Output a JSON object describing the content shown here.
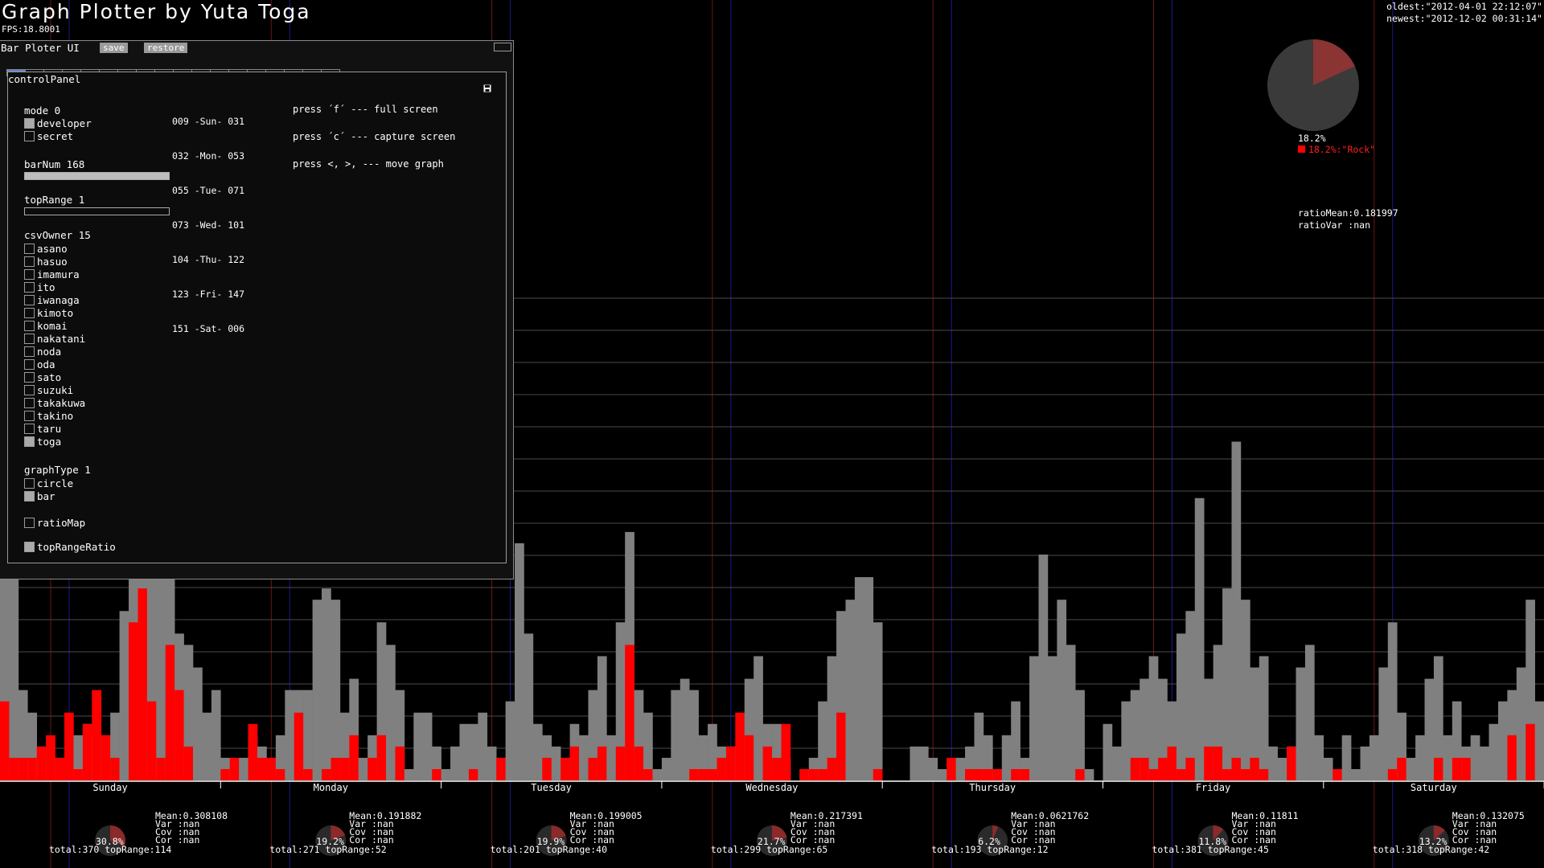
{
  "app": {
    "title": "Graph Plotter by Yuta Toga",
    "fps": "FPS:18.8001",
    "oldest": "oldest:\"2012-04-01 22:12:07\"",
    "newest": "newest:\"2012-12-02 00:31:14\""
  },
  "window": {
    "title": "Bar Ploter UI",
    "save_label": "save",
    "restore_label": "restore",
    "tab_count": 18,
    "active_tab": 0
  },
  "panel": {
    "title": "controlPanel",
    "mode": {
      "label": "mode 0",
      "options": [
        {
          "label": "developer",
          "checked": true
        },
        {
          "label": "secret",
          "checked": false
        }
      ]
    },
    "barNum": {
      "label": "barNum 168",
      "fill": 1.0
    },
    "topRange": {
      "label": "topRange 1",
      "fill": 0.0
    },
    "csvOwner": {
      "label": "csvOwner 15",
      "owners": [
        {
          "label": "asano",
          "checked": false
        },
        {
          "label": "hasuo",
          "checked": false
        },
        {
          "label": "imamura",
          "checked": false
        },
        {
          "label": "ito",
          "checked": false
        },
        {
          "label": "iwanaga",
          "checked": false
        },
        {
          "label": "kimoto",
          "checked": false
        },
        {
          "label": "komai",
          "checked": false
        },
        {
          "label": "nakatani",
          "checked": false
        },
        {
          "label": "noda",
          "checked": false
        },
        {
          "label": "oda",
          "checked": false
        },
        {
          "label": "sato",
          "checked": false
        },
        {
          "label": "suzuki",
          "checked": false
        },
        {
          "label": "takakuwa",
          "checked": false
        },
        {
          "label": "takino",
          "checked": false
        },
        {
          "label": "taru",
          "checked": false
        },
        {
          "label": "toga",
          "checked": true
        }
      ]
    },
    "graphType": {
      "label": "graphType 1",
      "options": [
        {
          "label": "circle",
          "checked": false
        },
        {
          "label": "bar",
          "checked": true
        }
      ]
    },
    "ratioMap": {
      "label": "ratioMap",
      "checked": false
    },
    "topRangeRatio": {
      "label": "topRangeRatio",
      "checked": true
    },
    "day_bins": [
      "009 -Sun- 031",
      "032 -Mon- 053",
      "055 -Tue- 071",
      "073 -Wed- 101",
      "104 -Thu- 122",
      "123 -Fri- 147",
      "151 -Sat- 006"
    ],
    "help": [
      "press ´f´ --- full screen",
      "press ´c´ --- capture screen",
      "press <, >, --- move graph"
    ]
  },
  "pie": {
    "percent_label": "18.2%",
    "legend_label": "18.2%:\"Rock\"",
    "fraction": 0.182,
    "ratio_mean": "ratioMean:0.181997",
    "ratio_var": "ratioVar :nan"
  },
  "colors": {
    "accent": "#ff0000",
    "bar_total": "#808080",
    "tab_active": "#5a85d0",
    "blue_line": "#1a1a8c",
    "red_line": "#6e1414"
  },
  "chart_data": {
    "type": "bar",
    "categories": [
      "Sunday",
      "Monday",
      "Tuesday",
      "Wednesday",
      "Thursday",
      "Friday",
      "Saturday"
    ],
    "bars_per_day": 24,
    "series": [
      {
        "color": "#808080",
        "values": [
          [
            22,
            19,
            8,
            6,
            3,
            2,
            2,
            1,
            4,
            5,
            4,
            4,
            6,
            15,
            25,
            33,
            31,
            18,
            28,
            13,
            12,
            10,
            6,
            8
          ],
          [
            2,
            1,
            2,
            4,
            3,
            2,
            4,
            8,
            8,
            8,
            16,
            17,
            16,
            6,
            9,
            2,
            4,
            14,
            12,
            8,
            1,
            6,
            6,
            3
          ],
          [
            1,
            3,
            5,
            5,
            6,
            3,
            2,
            7,
            21,
            13,
            5,
            4,
            3,
            2,
            5,
            4,
            8,
            11,
            4,
            14,
            22,
            8,
            6,
            1
          ],
          [
            2,
            8,
            9,
            8,
            4,
            5,
            3,
            3,
            3,
            9,
            11,
            5,
            5,
            2,
            0,
            1,
            2,
            7,
            11,
            15,
            16,
            18,
            18,
            14
          ],
          [
            0,
            0,
            0,
            3,
            3,
            2,
            1,
            1,
            2,
            3,
            6,
            4,
            1,
            4,
            7,
            2,
            11,
            20,
            11,
            16,
            12,
            8,
            1,
            0
          ],
          [
            5,
            3,
            7,
            8,
            9,
            11,
            9,
            7,
            13,
            15,
            25,
            9,
            12,
            17,
            30,
            16,
            10,
            11,
            3,
            2,
            3,
            10,
            12,
            4
          ],
          [
            2,
            1,
            4,
            1,
            3,
            4,
            10,
            14,
            6,
            2,
            4,
            9,
            11,
            4,
            7,
            3,
            4,
            3,
            5,
            7,
            8,
            10,
            16,
            7
          ]
        ]
      },
      {
        "color": "#ff0000",
        "values": [
          [
            7,
            2,
            2,
            2,
            3,
            4,
            2,
            6,
            1,
            5,
            8,
            4,
            2,
            0,
            14,
            17,
            7,
            2,
            12,
            8,
            3,
            0,
            0,
            0
          ],
          [
            1,
            2,
            0,
            5,
            2,
            2,
            1,
            0,
            6,
            1,
            0,
            1,
            2,
            2,
            4,
            0,
            2,
            4,
            0,
            3,
            0,
            0,
            0,
            1
          ],
          [
            0,
            0,
            0,
            1,
            0,
            0,
            2,
            0,
            0,
            0,
            0,
            2,
            0,
            2,
            3,
            0,
            2,
            3,
            0,
            3,
            12,
            3,
            1,
            0
          ],
          [
            0,
            0,
            0,
            1,
            1,
            1,
            2,
            3,
            6,
            4,
            0,
            3,
            2,
            5,
            0,
            1,
            1,
            1,
            2,
            6,
            0,
            0,
            0,
            1
          ],
          [
            0,
            0,
            0,
            0,
            0,
            0,
            0,
            2,
            0,
            1,
            1,
            1,
            1,
            0,
            1,
            1,
            0,
            0,
            0,
            0,
            0,
            1,
            0,
            0
          ],
          [
            0,
            0,
            0,
            2,
            2,
            1,
            2,
            3,
            1,
            2,
            0,
            3,
            3,
            1,
            2,
            1,
            2,
            1,
            0,
            0,
            3,
            0,
            0,
            0
          ],
          [
            0,
            1,
            0,
            0,
            0,
            0,
            0,
            1,
            2,
            0,
            0,
            0,
            2,
            0,
            2,
            2,
            0,
            0,
            0,
            0,
            4,
            0,
            5,
            0
          ]
        ]
      }
    ],
    "ylim": [
      0,
      55
    ]
  },
  "day_stats": [
    {
      "mean": "Mean:0.308108",
      "var": "Var :nan",
      "cov": "Cov :nan",
      "cor": "Cor :nan",
      "pct": "30.8%",
      "totals": "total:370 topRange:114"
    },
    {
      "mean": "Mean:0.191882",
      "var": "Var :nan",
      "cov": "Cov :nan",
      "cor": "Cor :nan",
      "pct": "19.2%",
      "totals": "total:271 topRange:52"
    },
    {
      "mean": "Mean:0.199005",
      "var": "Var :nan",
      "cov": "Cov :nan",
      "cor": "Cor :nan",
      "pct": "19.9%",
      "totals": "total:201 topRange:40"
    },
    {
      "mean": "Mean:0.217391",
      "var": "Var :nan",
      "cov": "Cov :nan",
      "cor": "Cor :nan",
      "pct": "21.7%",
      "totals": "total:299 topRange:65"
    },
    {
      "mean": "Mean:0.0621762",
      "var": "Var :nan",
      "cov": "Cov :nan",
      "cor": "Cor :nan",
      "pct": "6.2%",
      "totals": "total:193 topRange:12"
    },
    {
      "mean": "Mean:0.11811",
      "var": "Var :nan",
      "cov": "Cov :nan",
      "cor": "Cor :nan",
      "pct": "11.8%",
      "totals": "total:381 topRange:45"
    },
    {
      "mean": "Mean:0.132075",
      "var": "Var :nan",
      "cov": "Cov :nan",
      "cor": "Cor :nan",
      "pct": "13.2%",
      "totals": "total:318 topRange:42"
    }
  ]
}
